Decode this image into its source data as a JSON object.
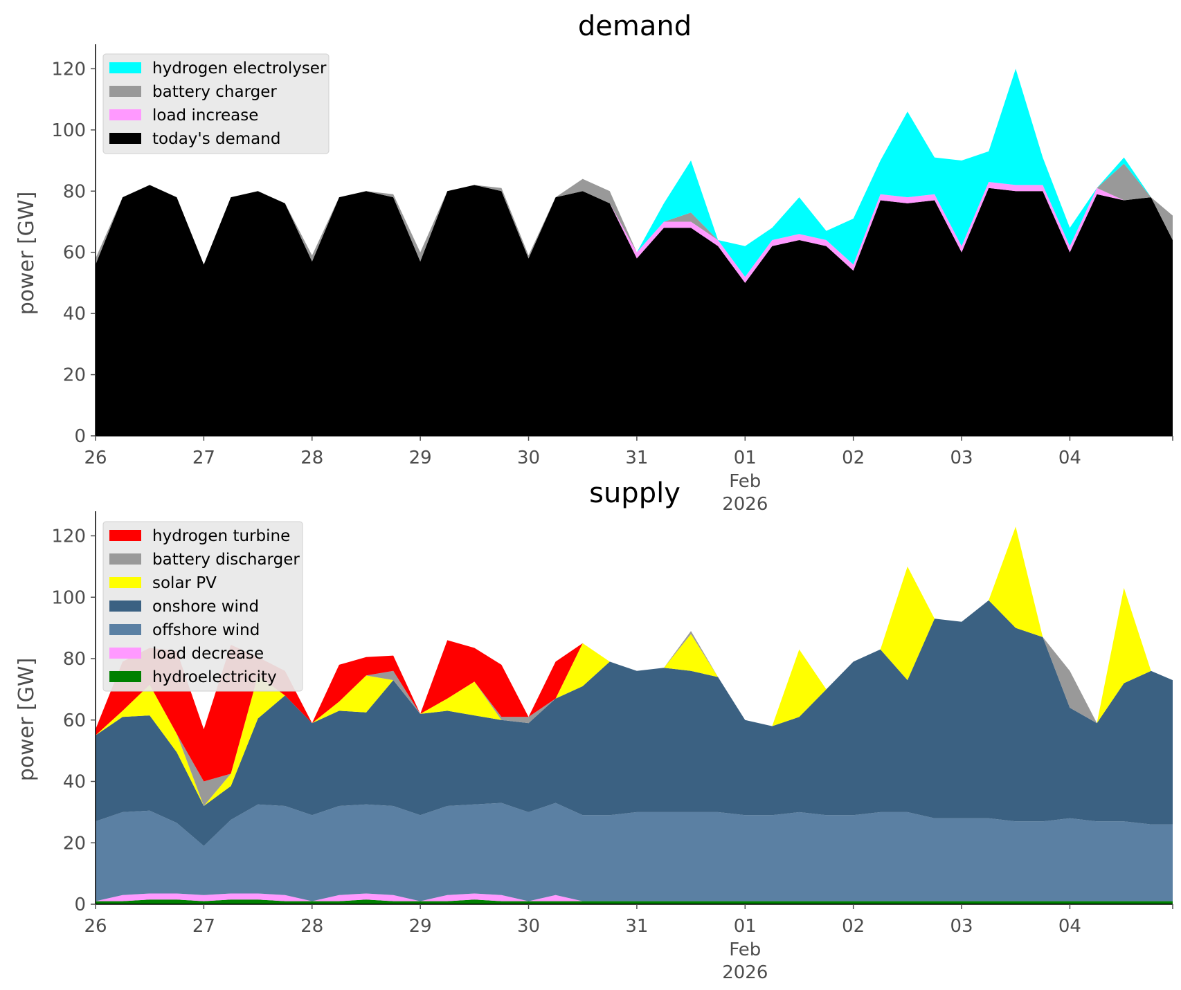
{
  "chart_data": [
    {
      "type": "area",
      "stacked": true,
      "title": "demand",
      "ylabel": "power [GW]",
      "ylim": [
        0,
        128
      ],
      "yticks": [
        0,
        20,
        40,
        60,
        80,
        100,
        120
      ],
      "ytick_labels": [
        "0",
        "20",
        "40",
        "60",
        "80",
        "100",
        "120"
      ],
      "xlim": [
        0,
        9.95
      ],
      "xticks": [
        0,
        1,
        2,
        3,
        4,
        5,
        6,
        7,
        8,
        9
      ],
      "xtick_labels": [
        "26",
        "27",
        "28",
        "29",
        "30",
        "31",
        "01",
        "02",
        "03",
        "04"
      ],
      "xtick_sublabels": [
        "Feb",
        "2026"
      ],
      "x_unit": "days since 26 Jan 2026",
      "x": [
        0,
        0.25,
        0.5,
        0.75,
        1,
        1.25,
        1.5,
        1.75,
        2,
        2.25,
        2.5,
        2.75,
        3,
        3.25,
        3.5,
        3.75,
        4,
        4.25,
        4.5,
        4.75,
        5,
        5.25,
        5.5,
        5.75,
        6,
        6.25,
        6.5,
        6.75,
        7,
        7.25,
        7.5,
        7.75,
        8,
        8.25,
        8.5,
        8.75,
        9,
        9.25,
        9.5,
        9.75,
        9.95
      ],
      "legend_position": "top-left",
      "series": [
        {
          "name": "today's demand",
          "color": "#000000",
          "values": [
            56,
            78,
            82,
            78,
            56,
            78,
            80,
            76,
            57,
            78,
            80,
            78,
            57,
            80,
            82,
            80,
            58,
            78,
            80,
            76,
            58,
            68,
            68,
            62,
            50,
            62,
            64,
            62,
            54,
            77,
            76,
            77,
            60,
            81,
            80,
            80,
            60,
            79,
            77,
            78,
            64
          ]
        },
        {
          "name": "load increase",
          "color": "#ff99ff",
          "values": [
            0,
            0,
            0,
            0,
            0,
            0,
            0,
            0,
            0,
            0,
            0,
            0,
            0,
            0,
            0,
            0,
            0,
            0,
            0,
            0,
            2,
            2,
            2,
            2,
            2,
            2,
            2,
            2,
            2,
            2,
            2,
            2,
            2,
            2,
            2,
            2,
            2,
            2,
            0,
            0,
            0
          ]
        },
        {
          "name": "battery charger",
          "color": "#999999",
          "values": [
            2,
            0,
            0,
            0,
            0,
            0,
            0,
            0,
            2,
            0,
            0,
            1,
            3,
            0,
            0,
            1,
            1,
            0,
            4,
            4,
            0,
            0,
            3,
            0,
            0,
            0,
            0,
            0,
            0,
            0,
            0,
            0,
            0,
            0,
            0,
            0,
            0,
            0,
            12,
            0,
            8
          ]
        },
        {
          "name": "hydrogen electrolyser",
          "color": "#00ffff",
          "values": [
            0,
            0,
            0,
            0,
            0,
            0,
            0,
            0,
            0,
            0,
            0,
            0,
            0,
            0,
            0,
            0,
            0,
            0,
            0,
            0,
            0,
            6,
            17,
            0,
            10,
            4,
            12,
            3,
            15,
            11,
            28,
            12,
            28,
            10,
            38,
            9,
            6,
            0,
            2,
            0,
            0
          ]
        }
      ]
    },
    {
      "type": "area",
      "stacked": true,
      "title": "supply",
      "ylabel": "power [GW]",
      "ylim": [
        0,
        128
      ],
      "yticks": [
        0,
        20,
        40,
        60,
        80,
        100,
        120
      ],
      "ytick_labels": [
        "0",
        "20",
        "40",
        "60",
        "80",
        "100",
        "120"
      ],
      "xlim": [
        0,
        9.95
      ],
      "xticks": [
        0,
        1,
        2,
        3,
        4,
        5,
        6,
        7,
        8,
        9
      ],
      "xtick_labels": [
        "26",
        "27",
        "28",
        "29",
        "30",
        "31",
        "01",
        "02",
        "03",
        "04"
      ],
      "xtick_sublabels": [
        "Feb",
        "2026"
      ],
      "x_unit": "days since 26 Jan 2026",
      "x": [
        0,
        0.25,
        0.5,
        0.75,
        1,
        1.25,
        1.5,
        1.75,
        2,
        2.25,
        2.5,
        2.75,
        3,
        3.25,
        3.5,
        3.75,
        4,
        4.25,
        4.5,
        4.75,
        5,
        5.25,
        5.5,
        5.75,
        6,
        6.25,
        6.5,
        6.75,
        7,
        7.25,
        7.5,
        7.75,
        8,
        8.25,
        8.5,
        8.75,
        9,
        9.25,
        9.5,
        9.75,
        9.95
      ],
      "legend_position": "top-left",
      "series": [
        {
          "name": "hydroelectricity",
          "color": "#008000",
          "values": [
            1,
            1,
            1.5,
            1.5,
            1,
            1.5,
            1.5,
            1,
            1,
            1,
            1.5,
            1,
            1,
            1,
            1.5,
            1,
            1,
            1,
            1,
            1,
            1,
            1,
            1,
            1,
            1,
            1,
            1,
            1,
            1,
            1,
            1,
            1,
            1,
            1,
            1,
            1,
            1,
            1,
            1,
            1,
            1
          ]
        },
        {
          "name": "load decrease",
          "color": "#ff99ff",
          "values": [
            0,
            2,
            2,
            2,
            2,
            2,
            2,
            2,
            0,
            2,
            2,
            2,
            0,
            2,
            2,
            2,
            0,
            2,
            0,
            0,
            0,
            0,
            0,
            0,
            0,
            0,
            0,
            0,
            0,
            0,
            0,
            0,
            0,
            0,
            0,
            0,
            0,
            0,
            0,
            0,
            0
          ]
        },
        {
          "name": "offshore wind",
          "color": "#5b80a3",
          "values": [
            26,
            27,
            27,
            23,
            16,
            24,
            29,
            29,
            28,
            29,
            29,
            29,
            28,
            29,
            29,
            30,
            29,
            30,
            28,
            28,
            29,
            29,
            29,
            29,
            28,
            28,
            29,
            28,
            28,
            29,
            29,
            27,
            27,
            27,
            26,
            26,
            27,
            26,
            26,
            25,
            25
          ]
        },
        {
          "name": "onshore wind",
          "color": "#3b6182",
          "values": [
            28,
            31,
            31,
            23,
            13,
            11,
            28,
            36,
            30,
            31,
            30,
            41,
            33,
            31,
            29,
            27,
            29,
            34,
            42,
            50,
            46,
            47,
            46,
            44,
            31,
            29,
            31,
            41,
            50,
            53,
            43,
            65,
            64,
            71,
            63,
            60,
            36,
            32,
            45,
            50,
            47
          ]
        },
        {
          "name": "solar PV",
          "color": "#ffff00",
          "values": [
            0,
            2,
            10,
            6,
            0,
            4,
            14,
            0,
            0,
            3,
            12,
            0,
            0,
            4,
            11,
            0,
            0,
            0,
            14,
            0,
            0,
            0,
            12,
            0,
            0,
            0,
            22,
            0,
            0,
            0,
            37,
            0,
            0,
            0,
            33,
            0,
            0,
            0,
            31,
            0,
            0
          ]
        },
        {
          "name": "battery discharger",
          "color": "#999999",
          "values": [
            0,
            0,
            0,
            0,
            8,
            0,
            0,
            0,
            0,
            0,
            0,
            3,
            0,
            0,
            0,
            1,
            2,
            0,
            0,
            0,
            0,
            0,
            1,
            0,
            0,
            0,
            0,
            0,
            0,
            0,
            0,
            0,
            0,
            0,
            0,
            0,
            12,
            0,
            0,
            0,
            0
          ]
        },
        {
          "name": "hydrogen turbine",
          "color": "#ff0000",
          "values": [
            2,
            16,
            12,
            27,
            17,
            42,
            6,
            8,
            0,
            12,
            6,
            5,
            0,
            19,
            11,
            17,
            0,
            12,
            0,
            0,
            0,
            0,
            0,
            0,
            0,
            0,
            0,
            0,
            0,
            0,
            0,
            0,
            0,
            0,
            0,
            0,
            0,
            0,
            0,
            0,
            0
          ]
        }
      ]
    }
  ]
}
